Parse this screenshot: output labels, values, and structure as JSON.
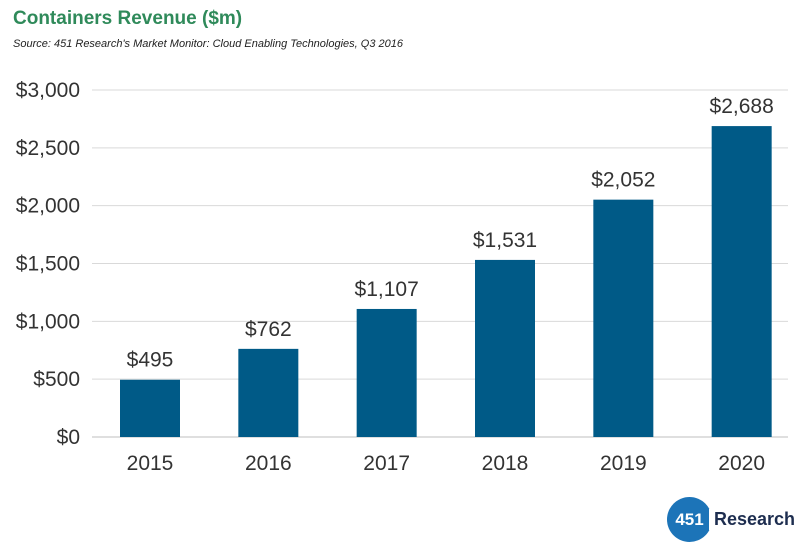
{
  "header": {
    "title": "Containers Revenue ($m)",
    "source": "Source: 451 Research's Market Monitor: Cloud Enabling Technologies, Q3 2016"
  },
  "logo": {
    "mark": "451",
    "text": "Research"
  },
  "colors": {
    "bar": "#005a87",
    "title": "#2f8a5a",
    "grid": "#d9d9d9"
  },
  "chart_data": {
    "type": "bar",
    "title": "Containers Revenue ($m)",
    "xlabel": "",
    "ylabel": "",
    "categories": [
      "2015",
      "2016",
      "2017",
      "2018",
      "2019",
      "2020"
    ],
    "values": [
      495,
      762,
      1107,
      1531,
      2052,
      2688
    ],
    "data_labels": [
      "$495",
      "$762",
      "$1,107",
      "$1,531",
      "$2,052",
      "$2,688"
    ],
    "ylim": [
      0,
      3000
    ],
    "yticks": [
      0,
      500,
      1000,
      1500,
      2000,
      2500,
      3000
    ],
    "ytick_labels": [
      "$0",
      "$500",
      "$1,000",
      "$1,500",
      "$2,000",
      "$2,500",
      "$3,000"
    ],
    "grid": true,
    "legend": "none"
  }
}
